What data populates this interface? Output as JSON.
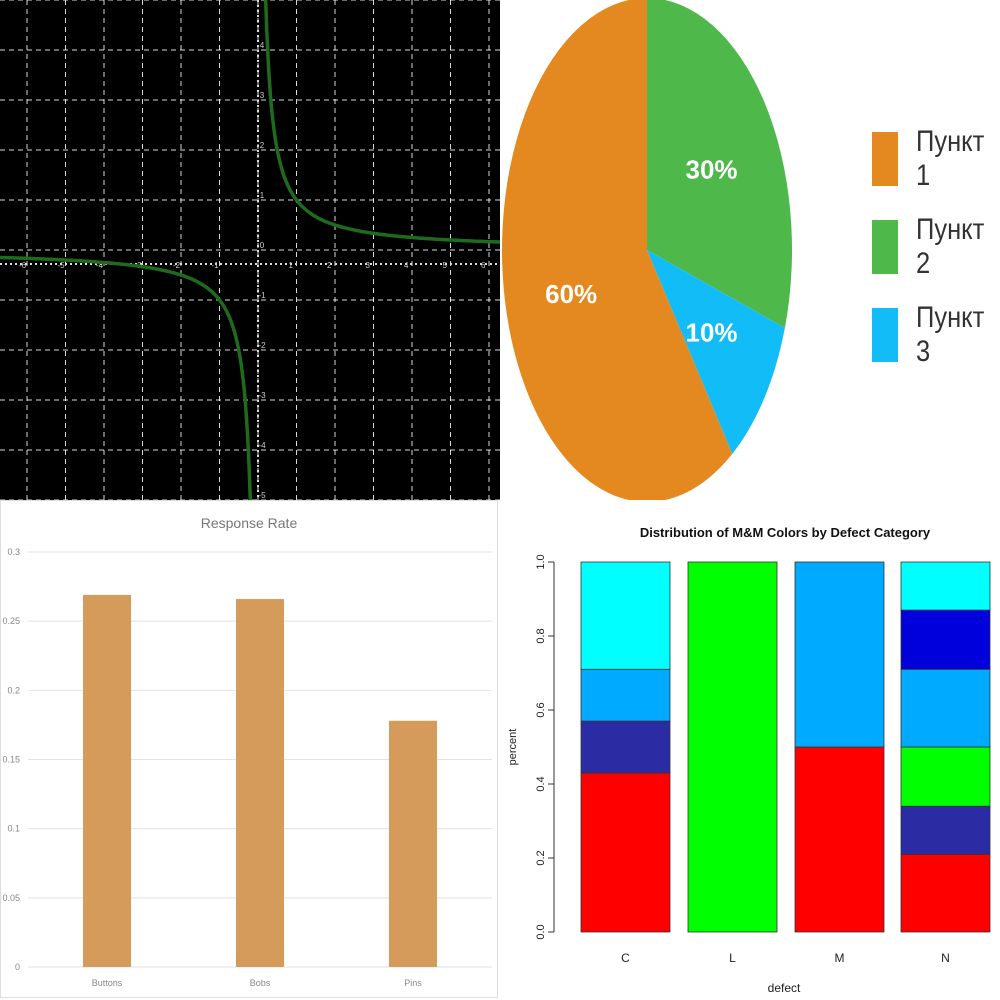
{
  "chart_data": [
    {
      "type": "line",
      "function": "y = 1/x",
      "xlim": [
        -6.5,
        6.3
      ],
      "ylim": [
        -5,
        5
      ],
      "xticks": [
        -6,
        -5,
        -4,
        -3,
        -2,
        -1,
        1,
        2,
        3,
        4,
        5,
        6
      ],
      "yticks": [
        -5,
        -4,
        -3,
        -2,
        -1,
        0,
        1,
        2,
        3,
        4
      ],
      "grid": true,
      "colors": {
        "background": "#000000",
        "grid": "#ffffff",
        "curve": "#1e6b1e"
      }
    },
    {
      "type": "pie",
      "slices": [
        {
          "label": "Пункт 1",
          "value": 60,
          "display": "60%",
          "color": "#e3891f"
        },
        {
          "label": "Пункт 2",
          "value": 30,
          "display": "30%",
          "color": "#4fb84a"
        },
        {
          "label": "Пункт 3",
          "value": 10,
          "display": "10%",
          "color": "#12bdf7"
        }
      ],
      "legend": "right"
    },
    {
      "type": "bar",
      "title": "Response Rate",
      "categories": [
        "Buttons",
        "Bobs",
        "Pins"
      ],
      "values": [
        0.269,
        0.266,
        0.178
      ],
      "ylim": [
        0,
        0.3
      ],
      "yticks": [
        "0",
        "0.05",
        "0.1",
        "0.15",
        "0.2",
        "0.25",
        "0.3"
      ],
      "grid": true,
      "color": "#d59b5a"
    },
    {
      "type": "bar",
      "stacked": true,
      "title": "Distribution of M&M Colors by Defect Category",
      "xlabel": "defect",
      "ylabel": "percent",
      "categories": [
        "C",
        "L",
        "M",
        "N"
      ],
      "ylim": [
        0,
        1
      ],
      "yticks": [
        "0.0",
        "0.2",
        "0.4",
        "0.6",
        "0.8",
        "1.0"
      ],
      "stacks": [
        {
          "category": "C",
          "segments": [
            {
              "color": "#ff0000",
              "value": 0.43
            },
            {
              "color": "#2b2ba3",
              "value": 0.14
            },
            {
              "color": "#00aaff",
              "value": 0.14
            },
            {
              "color": "#00ffff",
              "value": 0.29
            }
          ]
        },
        {
          "category": "L",
          "segments": [
            {
              "color": "#00ff00",
              "value": 1.0
            }
          ]
        },
        {
          "category": "M",
          "segments": [
            {
              "color": "#ff0000",
              "value": 0.5
            },
            {
              "color": "#00aaff",
              "value": 0.5
            }
          ]
        },
        {
          "category": "N",
          "segments": [
            {
              "color": "#ff0000",
              "value": 0.21
            },
            {
              "color": "#2b2ba3",
              "value": 0.13
            },
            {
              "color": "#00ff00",
              "value": 0.16
            },
            {
              "color": "#00aaff",
              "value": 0.21
            },
            {
              "color": "#0000dd",
              "value": 0.16
            },
            {
              "color": "#00ffff",
              "value": 0.13
            }
          ]
        }
      ]
    }
  ]
}
